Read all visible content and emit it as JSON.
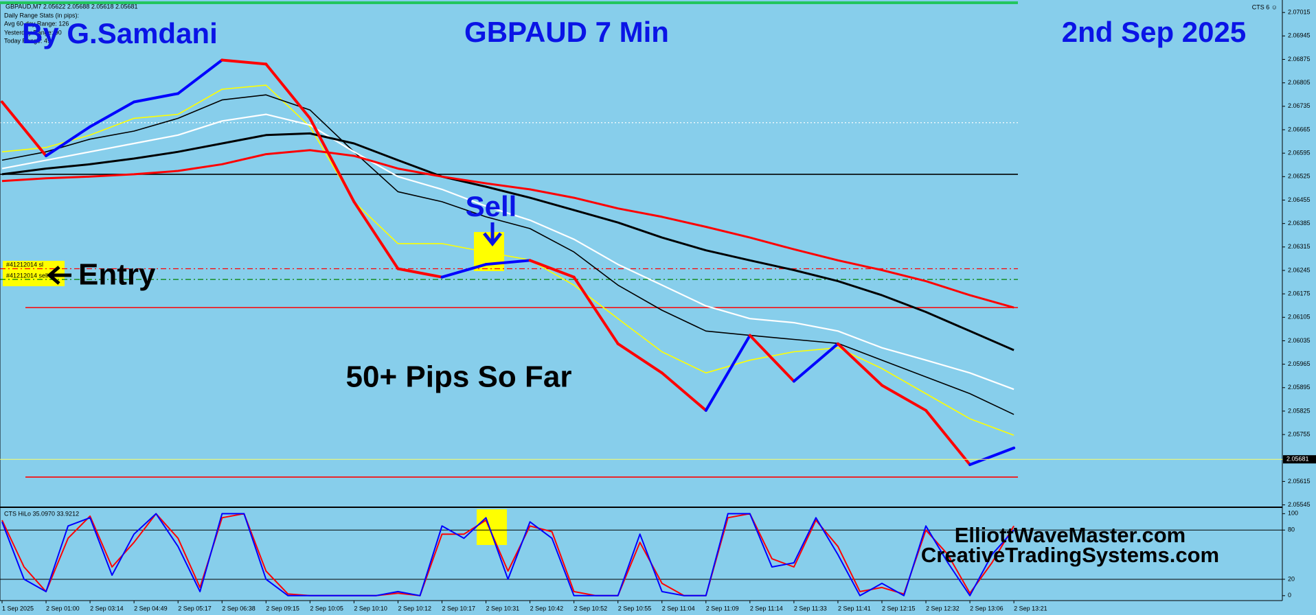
{
  "chart_data": {
    "type": "line",
    "title": "GBPAUD 7 Min",
    "author": "By G.Samdani",
    "date": "2nd Sep 2025",
    "info": [
      "GBPAUD,M7  2.05622 2.05688 2.05618 2.05681",
      "Daily Range Stats (in pips):",
      "Avg 60-day Range: 126",
      "Yesterday Range: 90",
      "Today Range: 49"
    ],
    "corner_label": "CTS 6 ☺",
    "annotations": {
      "sell": "Sell",
      "entry": "Entry",
      "pips": "50+ Pips So Far",
      "site1": "ElliottWaveMaster.com",
      "site2": "CreativeTradingSystems.com"
    },
    "orders": [
      "#41212014 sl",
      "#41212014 sell"
    ],
    "categories": [
      "1 Sep 2025",
      "2 Sep 01:00",
      "2 Sep 03:14",
      "2 Sep 04:49",
      "2 Sep 05:17",
      "2 Sep 06:38",
      "2 Sep 09:15",
      "2 Sep 10:05",
      "2 Sep 10:10",
      "2 Sep 10:12",
      "2 Sep 10:17",
      "2 Sep 10:31",
      "2 Sep 10:42",
      "2 Sep 10:52",
      "2 Sep 10:55",
      "2 Sep 11:04",
      "2 Sep 11:09",
      "2 Sep 11:14",
      "2 Sep 11:33",
      "2 Sep 11:41",
      "2 Sep 12:15",
      "2 Sep 12:32",
      "2 Sep 13:06",
      "2 Sep 13:21"
    ],
    "ylim": [
      2.0554,
      2.0704
    ],
    "yticks": [
      2.07015,
      2.06945,
      2.06875,
      2.06805,
      2.06735,
      2.06665,
      2.06595,
      2.06525,
      2.06455,
      2.06385,
      2.06315,
      2.06245,
      2.06175,
      2.06105,
      2.06035,
      2.05965,
      2.05895,
      2.05825,
      2.05755,
      2.05615,
      2.05545
    ],
    "last_price": 2.05681,
    "last_price_color": "#ffff66",
    "hlines": [
      {
        "value": 2.06686,
        "color": "#ffffff",
        "style": "dotted"
      },
      {
        "value": 2.06532,
        "color": "#000000",
        "style": "solid"
      },
      {
        "value": 2.0625,
        "color": "#ff0000",
        "style": "dashdot"
      },
      {
        "value": 2.06218,
        "color": "#008000",
        "style": "dashdot"
      },
      {
        "value": 2.06134,
        "color": "#ff0000",
        "style": "solid"
      },
      {
        "value": 2.05628,
        "color": "#ff0000",
        "style": "solid"
      }
    ],
    "series": [
      {
        "color": "#ff0000",
        "up_color": "#0000ff",
        "values": [
          2.06748,
          2.06587,
          2.06674,
          2.06748,
          2.06773,
          2.06873,
          2.06861,
          2.06699,
          2.0645,
          2.0625,
          2.06225,
          2.06263,
          2.06275,
          2.06225,
          2.06026,
          2.05939,
          2.05827,
          2.06051,
          2.05914,
          2.06026,
          2.05902,
          2.05827,
          2.05665,
          2.05715
        ]
      },
      {
        "color": "#ff0000",
        "values": [
          2.06512,
          2.0652,
          2.06525,
          2.06532,
          2.06542,
          2.06562,
          2.06592,
          2.06604,
          2.06587,
          2.06549,
          2.06525,
          2.06505,
          2.06487,
          2.06462,
          2.0643,
          2.06405,
          2.06375,
          2.06343,
          2.06308,
          2.06275,
          2.06246,
          2.06213,
          2.06171,
          2.06134
        ]
      },
      {
        "color": "#000000",
        "values": [
          2.06532,
          2.06549,
          2.06562,
          2.06579,
          2.06599,
          2.06624,
          2.06649,
          2.06654,
          2.06624,
          2.06574,
          2.06525,
          2.06495,
          2.06462,
          2.06425,
          2.06388,
          2.06343,
          2.06305,
          2.06275,
          2.06246,
          2.06213,
          2.06171,
          2.06121,
          2.06064,
          2.06007
        ]
      },
      {
        "color": "#ffffff",
        "values": [
          2.06549,
          2.06574,
          2.06599,
          2.06624,
          2.06649,
          2.06691,
          2.06711,
          2.06679,
          2.06599,
          2.06525,
          2.06487,
          2.06437,
          2.06395,
          2.06338,
          2.06263,
          2.06201,
          2.06139,
          2.06101,
          2.06089,
          2.06064,
          2.06014,
          2.05977,
          2.05939,
          2.0589
        ]
      },
      {
        "color": "#000000",
        "values": [
          2.06574,
          2.06599,
          2.06637,
          2.06661,
          2.06699,
          2.06754,
          2.06769,
          2.06724,
          2.06599,
          2.0648,
          2.0645,
          2.06405,
          2.0637,
          2.063,
          2.06201,
          2.06126,
          2.06064,
          2.06051,
          2.06039,
          2.06027,
          2.05977,
          2.05927,
          2.05877,
          2.05815
        ]
      },
      {
        "color": "#ffff00",
        "values": [
          2.06599,
          2.06612,
          2.06649,
          2.06699,
          2.06711,
          2.06786,
          2.06798,
          2.06674,
          2.0645,
          2.06325,
          2.06325,
          2.063,
          2.06276,
          2.06201,
          2.06101,
          2.06002,
          2.05939,
          2.05977,
          2.06002,
          2.06014,
          2.05952,
          2.05877,
          2.05802,
          2.05753
        ]
      }
    ],
    "indicator": {
      "title": "CTS HiLo 35.0970 33.9212",
      "ylim": [
        -6,
        107
      ],
      "yticks": [
        100,
        80,
        20,
        0
      ],
      "levels": [
        80,
        20
      ],
      "series": [
        {
          "color": "#0000ff",
          "values": [
            90,
            20,
            5,
            85,
            95,
            25,
            75,
            100,
            60,
            5,
            100,
            100,
            20,
            0,
            0,
            0,
            0,
            0,
            5,
            0,
            85,
            70,
            95,
            20,
            90,
            70,
            0,
            0,
            0,
            75,
            5,
            0,
            0,
            100,
            100,
            35,
            40,
            95,
            50,
            0,
            15,
            0,
            85,
            40,
            0,
            50,
            80
          ]
        },
        {
          "color": "#ff0000",
          "values": [
            92,
            35,
            5,
            70,
            97,
            35,
            65,
            100,
            70,
            10,
            95,
            100,
            30,
            2,
            0,
            0,
            0,
            0,
            3,
            0,
            75,
            75,
            92,
            30,
            85,
            78,
            5,
            0,
            0,
            65,
            15,
            0,
            0,
            95,
            100,
            45,
            35,
            92,
            60,
            5,
            10,
            2,
            80,
            50,
            3,
            40,
            85
          ]
        }
      ]
    }
  }
}
